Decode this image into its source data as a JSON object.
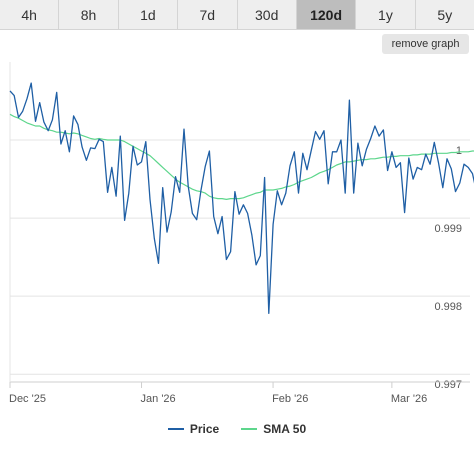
{
  "tabs": [
    {
      "label": "4h",
      "active": false
    },
    {
      "label": "8h",
      "active": false
    },
    {
      "label": "1d",
      "active": false
    },
    {
      "label": "7d",
      "active": false
    },
    {
      "label": "30d",
      "active": false
    },
    {
      "label": "120d",
      "active": true
    },
    {
      "label": "1y",
      "active": false
    },
    {
      "label": "5y",
      "active": false
    }
  ],
  "remove_graph_label": "remove graph",
  "colors": {
    "price": "#1f5fa5",
    "sma": "#5dd68c",
    "grid": "#e4e4e4",
    "axis": "#cfcfcf"
  },
  "chart_data": {
    "type": "line",
    "x_ticks": [
      "Dec '25",
      "Jan '26",
      "Feb '26",
      "Mar '26"
    ],
    "y_ticks": [
      {
        "value": 1,
        "label": "1"
      },
      {
        "value": 0.999,
        "label": "0.999"
      },
      {
        "value": 0.998,
        "label": "0.998"
      },
      {
        "value": 0.997,
        "label": "0.997"
      }
    ],
    "ylim": [
      0.9969,
      1.001
    ],
    "x_range": [
      0,
      107
    ],
    "x_tick_positions": [
      0,
      31,
      62,
      90
    ],
    "grid": true,
    "legend_position": "bottom",
    "series": [
      {
        "name": "Price",
        "values": [
          1.00063,
          1.00057,
          1.00029,
          1.00037,
          1.00053,
          1.00073,
          1.00024,
          1.00048,
          1.00023,
          1.00012,
          1.00026,
          1.00061,
          0.99995,
          1.00012,
          0.99985,
          1.00031,
          1.0002,
          0.99991,
          0.99974,
          0.9999,
          0.99989,
          1.00001,
          0.99998,
          0.99933,
          0.99965,
          0.99928,
          1.00005,
          0.99897,
          0.99932,
          0.99992,
          0.99968,
          0.99972,
          0.99998,
          0.99924,
          0.99874,
          0.99842,
          0.99939,
          0.99882,
          0.99908,
          0.99953,
          0.99933,
          1.00014,
          0.99941,
          0.99906,
          0.99898,
          0.99935,
          0.99966,
          0.99986,
          0.99902,
          0.9988,
          0.99902,
          0.99847,
          0.99857,
          0.99934,
          0.99905,
          0.99917,
          0.99906,
          0.99878,
          0.9984,
          0.99852,
          0.99952,
          0.99778,
          0.99892,
          0.99935,
          0.99917,
          0.99932,
          0.99967,
          0.99985,
          0.99932,
          0.99983,
          0.99962,
          0.99987,
          1.00011,
          1.00001,
          1.00012,
          0.99944,
          0.99985,
          0.99985,
          1.0,
          0.99932,
          1.00051,
          0.99932,
          0.99996,
          0.99967,
          0.99988,
          1.00002,
          1.00018,
          1.00005,
          1.00013,
          0.99961,
          0.99985,
          0.99965,
          0.99971,
          0.99907,
          0.99977,
          0.9995,
          0.99965,
          0.99962,
          0.99982,
          0.99969,
          0.99997,
          0.99971,
          0.99939,
          0.99976,
          0.99963,
          0.99934,
          0.99945,
          0.99969,
          0.99965,
          0.99957,
          0.99932,
          0.99964,
          0.99991,
          0.99985
        ]
      },
      {
        "name": "SMA 50",
        "values": [
          1.00033,
          1.0003,
          1.00028,
          1.00025,
          1.00022,
          1.0002,
          1.00018,
          1.00018,
          1.00015,
          1.00013,
          1.00012,
          1.0001,
          1.0001,
          1.00009,
          1.00008,
          1.00009,
          1.00008,
          1.00006,
          1.00004,
          1.00002,
          1.00001,
          1.00002,
          1.00001,
          1.0,
          1.0,
          1.0,
          1.0,
          0.99998,
          0.99995,
          0.99992,
          0.99989,
          0.99986,
          0.99983,
          0.9998,
          0.99975,
          0.9997,
          0.99965,
          0.9996,
          0.99955,
          0.9995,
          0.99946,
          0.99943,
          0.9994,
          0.99937,
          0.99935,
          0.99934,
          0.99932,
          0.99928,
          0.99926,
          0.99925,
          0.99925,
          0.99924,
          0.99925,
          0.99925,
          0.99925,
          0.99926,
          0.99928,
          0.9993,
          0.99932,
          0.99933,
          0.99936,
          0.99936,
          0.99936,
          0.99937,
          0.99938,
          0.9994,
          0.99941,
          0.99943,
          0.99946,
          0.99948,
          0.9995,
          0.99952,
          0.99955,
          0.99958,
          0.9996,
          0.99962,
          0.99965,
          0.99968,
          0.9997,
          0.99972,
          0.99972,
          0.99973,
          0.99974,
          0.99975,
          0.99975,
          0.99976,
          0.99976,
          0.99977,
          0.99978,
          0.99978,
          0.99979,
          0.99979,
          0.9998,
          0.9998,
          0.9998,
          0.99981,
          0.99981,
          0.99982,
          0.99982,
          0.99982,
          0.99983,
          0.99983,
          0.99983,
          0.99983,
          0.99984,
          0.99984,
          0.99985,
          0.99985,
          0.99985,
          0.99986,
          0.99986,
          0.99986,
          0.99986,
          0.99986
        ]
      }
    ]
  }
}
